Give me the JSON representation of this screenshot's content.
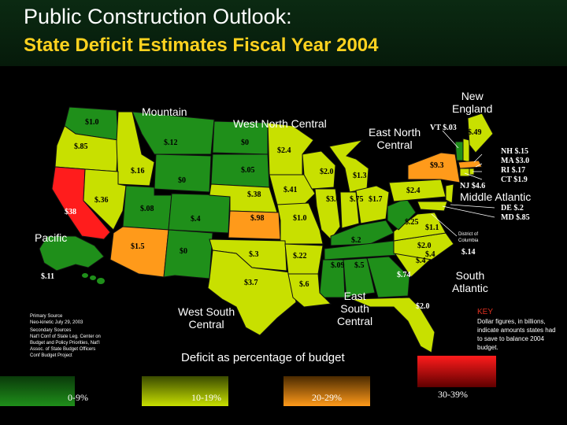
{
  "header": {
    "title": "Public Construction Outlook:",
    "subtitle": "State Deficit Estimates Fiscal Year 2004"
  },
  "colors": {
    "band_0_9": "#1f8f1a",
    "band_10_19": "#c8e000",
    "band_20_29": "#ff9a1a",
    "band_30_39": "#ff1c1c",
    "header_bg": "#0b2a12",
    "subtitle_color": "#ffd21f",
    "key_title_color": "#e03020"
  },
  "regions": {
    "mountain": "Mountain",
    "west_north_central": "West North Central",
    "new_england": "New\nEngland",
    "east_north_central": "East North\nCentral",
    "middle_atlantic": "Middle Atlantic",
    "pacific": "Pacific",
    "south_atlantic": "South\nAtlantic",
    "east_south_central": "East\nSouth\nCentral",
    "west_south_central": "West South\nCentral"
  },
  "states": [
    {
      "state": "Washington",
      "value": "$1.0",
      "band": "0-9%"
    },
    {
      "state": "Oregon",
      "value": "$.85",
      "band": "10-19%"
    },
    {
      "state": "California",
      "value": "$38",
      "band": "30-39%"
    },
    {
      "state": "Nevada",
      "value": "$.36",
      "band": "10-19%"
    },
    {
      "state": "Idaho",
      "value": "$.16",
      "band": "10-19%"
    },
    {
      "state": "Montana",
      "value": "$.12",
      "band": "0-9%"
    },
    {
      "state": "Wyoming",
      "value": "$0",
      "band": "0-9%"
    },
    {
      "state": "Utah",
      "value": "$.08",
      "band": "0-9%"
    },
    {
      "state": "Colorado",
      "value": "$.4",
      "band": "0-9%"
    },
    {
      "state": "Arizona",
      "value": "$1.5",
      "band": "20-29%"
    },
    {
      "state": "New Mexico",
      "value": "$0",
      "band": "0-9%"
    },
    {
      "state": "North Dakota",
      "value": "$0",
      "band": "0-9%"
    },
    {
      "state": "South Dakota",
      "value": "$.05",
      "band": "0-9%"
    },
    {
      "state": "Nebraska",
      "value": "$.38",
      "band": "10-19%"
    },
    {
      "state": "Kansas",
      "value": "$.98",
      "band": "20-29%"
    },
    {
      "state": "Oklahoma",
      "value": "$.3",
      "band": "10-19%"
    },
    {
      "state": "Texas",
      "value": "$3.7",
      "band": "10-19%"
    },
    {
      "state": "Minnesota",
      "value": "$2.4",
      "band": "10-19%"
    },
    {
      "state": "Iowa",
      "value": "$.41",
      "band": "10-19%"
    },
    {
      "state": "Missouri",
      "value": "$1.0",
      "band": "10-19%"
    },
    {
      "state": "Arkansas",
      "value": "$.22",
      "band": "10-19%"
    },
    {
      "state": "Louisiana",
      "value": "$.6",
      "band": "10-19%"
    },
    {
      "state": "Wisconsin",
      "value": "$2.0",
      "band": "10-19%"
    },
    {
      "state": "Illinois",
      "value": "$3.6",
      "band": "10-19%"
    },
    {
      "state": "Michigan",
      "value": "$1.3",
      "band": "10-19%"
    },
    {
      "state": "Indiana",
      "value": "$.75",
      "band": "10-19%"
    },
    {
      "state": "Ohio",
      "value": "$1.7",
      "band": "10-19%"
    },
    {
      "state": "Kentucky",
      "value": "$.2",
      "band": "0-9%"
    },
    {
      "state": "Tennessee",
      "value": "$.09",
      "band": "0-9%"
    },
    {
      "state": "Mississippi",
      "value": "$.5",
      "band": "0-9%"
    },
    {
      "state": "Alabama",
      "value": "$.74",
      "band": "0-9%"
    },
    {
      "state": "Georgia",
      "value": "$.4",
      "band": "0-9%"
    },
    {
      "state": "Florida",
      "value": "$2.0",
      "band": "10-19%"
    },
    {
      "state": "South Carolina",
      "value": "$.4",
      "band": "10-19%"
    },
    {
      "state": "North Carolina",
      "value": "$2.0",
      "band": "10-19%"
    },
    {
      "state": "Virginia",
      "value": "$1.1",
      "band": "10-19%"
    },
    {
      "state": "West Virginia",
      "value": "$.25",
      "band": "0-9%"
    },
    {
      "state": "Pennsylvania",
      "value": "$2.4",
      "band": "10-19%"
    },
    {
      "state": "New York",
      "value": "$9.3",
      "band": "20-29%"
    },
    {
      "state": "Maine",
      "value": "$.49",
      "band": "10-19%"
    },
    {
      "state": "Alaska",
      "value": "$.11",
      "band": "0-9%"
    }
  ],
  "northeast_labels": {
    "vt": "VT $.03",
    "nh": "NH $.15",
    "ma": "MA $3.0",
    "ri": "RI  $.17",
    "ct": "CT $1.9",
    "nj": "NJ $4.6",
    "de": "DE $.2",
    "md": "MD $.85",
    "dc_name": "District of\nColumbia",
    "dc_value": "$.14"
  },
  "sources": {
    "primary": "Primary Source\nNeo-kinetic July 29, 2003",
    "secondary": "Secondary Sources\nNat'l Conf of State Leg. Center on\nBudget and Policy Priorities, Nat'l\nAssoc. of State Budget Officers\nConf Budget Project"
  },
  "key": {
    "title": "KEY",
    "body": "Dollar figures, in billions, indicate amounts states had to save to balance 2004 budget."
  },
  "legend": {
    "caption": "Deficit as percentage of budget",
    "items": [
      {
        "label": "0-9%",
        "color": "#1f8f1a"
      },
      {
        "label": "10-19%",
        "color": "#c8e000"
      },
      {
        "label": "20-29%",
        "color": "#ff9a1a"
      },
      {
        "label": "30-39%",
        "color": "#ff1c1c"
      }
    ]
  }
}
